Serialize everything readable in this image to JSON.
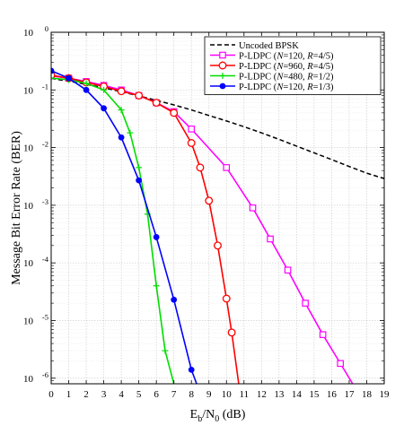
{
  "chart_data": {
    "type": "line",
    "xlabel": {
      "main": "E",
      "sub1": "b",
      "mid": "/N",
      "sub2": "0",
      "unit": " (dB)"
    },
    "ylabel": "Message Bit Error Rate (BER)",
    "xlim": [
      0,
      19
    ],
    "ylim": [
      8e-07,
      1
    ],
    "yscale": "log",
    "grid": true,
    "legend_position": "top-right",
    "x_ticks": [
      "0",
      "1",
      "2",
      "3",
      "4",
      "5",
      "6",
      "7",
      "8",
      "9",
      "10",
      "11",
      "12",
      "13",
      "14",
      "15",
      "16",
      "17",
      "18",
      "19"
    ],
    "y_ticks": [
      {
        "base": "10",
        "exp": "0"
      },
      {
        "base": "10",
        "exp": "-1"
      },
      {
        "base": "10",
        "exp": "-2"
      },
      {
        "base": "10",
        "exp": "-3"
      },
      {
        "base": "10",
        "exp": "-4"
      },
      {
        "base": "10",
        "exp": "-5"
      },
      {
        "base": "10",
        "exp": "-6"
      }
    ],
    "series": [
      {
        "legend": [
          {
            "t": "Uncoded BPSK"
          }
        ],
        "color": "#000000",
        "dashed": true,
        "marker": "none",
        "x": [
          0,
          1,
          2,
          3,
          4,
          5,
          6,
          7,
          8,
          9,
          10,
          11,
          12,
          13,
          14,
          15,
          16,
          17,
          18,
          19
        ],
        "y": [
          0.158,
          0.142,
          0.125,
          0.109,
          0.093,
          0.079,
          0.066,
          0.055,
          0.045,
          0.036,
          0.029,
          0.023,
          0.018,
          0.0139,
          0.0106,
          0.0081,
          0.0062,
          0.0047,
          0.0036,
          0.0029
        ]
      },
      {
        "legend": [
          {
            "t": "P-LDPC ("
          },
          {
            "t": "N",
            "i": true
          },
          {
            "t": "=120, "
          },
          {
            "t": "R",
            "i": true
          },
          {
            "t": "=4/5)"
          }
        ],
        "color": "#ff00ff",
        "marker": "square",
        "x": [
          0,
          1,
          2,
          3,
          4,
          5,
          6,
          7,
          8,
          10,
          11.5,
          12.5,
          13.5,
          14.5,
          15.5,
          16.5,
          17.2
        ],
        "y": [
          0.175,
          0.16,
          0.14,
          0.12,
          0.1,
          0.08,
          0.06,
          0.042,
          0.021,
          0.0045,
          0.0009,
          0.00026,
          7.5e-05,
          2e-05,
          5.7e-06,
          1.8e-06,
          8e-07
        ]
      },
      {
        "legend": [
          {
            "t": "P-LDPC ("
          },
          {
            "t": "N",
            "i": true
          },
          {
            "t": "=960, "
          },
          {
            "t": "R",
            "i": true
          },
          {
            "t": "=4/5)"
          }
        ],
        "color": "#ff0000",
        "marker": "circle",
        "x": [
          0,
          1,
          2,
          3,
          4,
          5,
          6,
          7,
          8,
          8.5,
          9,
          9.5,
          10,
          10.3,
          10.7
        ],
        "y": [
          0.18,
          0.16,
          0.135,
          0.115,
          0.095,
          0.08,
          0.06,
          0.04,
          0.012,
          0.0045,
          0.0012,
          0.0002,
          2.4e-05,
          6.2e-06,
          8e-07
        ]
      },
      {
        "legend": [
          {
            "t": "P-LDPC ("
          },
          {
            "t": "N",
            "i": true
          },
          {
            "t": "=480, "
          },
          {
            "t": "R",
            "i": true
          },
          {
            "t": "=1/2)"
          }
        ],
        "color": "#00dd00",
        "marker": "plus",
        "x": [
          0,
          1,
          2,
          3,
          4,
          4.5,
          5,
          5.5,
          6,
          6.5,
          7
        ],
        "y": [
          0.16,
          0.15,
          0.13,
          0.1,
          0.045,
          0.018,
          0.0045,
          0.0007,
          4e-05,
          3e-06,
          8e-07
        ]
      },
      {
        "legend": [
          {
            "t": "P-LDPC ("
          },
          {
            "t": "N",
            "i": true
          },
          {
            "t": "=120, "
          },
          {
            "t": "R",
            "i": true
          },
          {
            "t": "=1/3)"
          }
        ],
        "color": "#0000ff",
        "marker": "dot",
        "x": [
          0,
          1,
          2,
          3,
          4,
          5,
          6,
          7,
          8,
          8.3
        ],
        "y": [
          0.215,
          0.16,
          0.1,
          0.048,
          0.015,
          0.0027,
          0.00028,
          2.3e-05,
          1.4e-06,
          8e-07
        ]
      }
    ]
  }
}
